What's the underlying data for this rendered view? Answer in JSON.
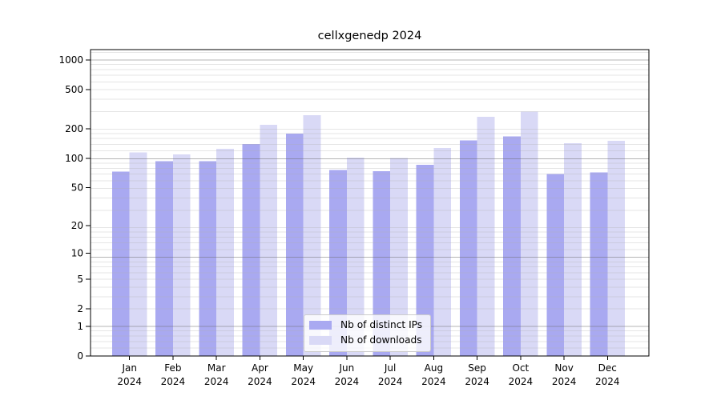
{
  "chart_data": {
    "type": "bar",
    "title": "cellxgenedp 2024",
    "x": [
      "Jan",
      "Feb",
      "Mar",
      "Apr",
      "May",
      "Jun",
      "Jul",
      "Aug",
      "Sep",
      "Oct",
      "Nov",
      "Dec"
    ],
    "x_year_label": "2024",
    "series": [
      {
        "name": "Nb of distinct IPs",
        "color": "#a9a9f1",
        "values": [
          73,
          93,
          93,
          140,
          179,
          76,
          74,
          86,
          152,
          167,
          69,
          72
        ]
      },
      {
        "name": "Nb of downloads",
        "color": "#d9d9f6",
        "values": [
          115,
          110,
          125,
          220,
          275,
          102,
          101,
          128,
          265,
          300,
          142,
          151
        ]
      }
    ],
    "ylabel": "",
    "xlabel": "",
    "y_scale": "log10(value+1)",
    "y_ticks": [
      0,
      1,
      2,
      5,
      10,
      20,
      50,
      100,
      200,
      500,
      1000
    ],
    "ylim": [
      0,
      1250
    ],
    "grid": "on",
    "legend_position": "lower center"
  }
}
